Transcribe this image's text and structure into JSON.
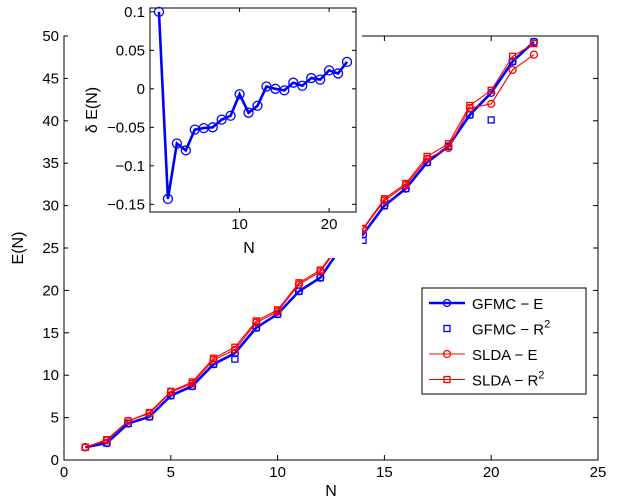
{
  "chart_data": [
    {
      "type": "line",
      "xlabel": "N",
      "ylabel": "E(N)",
      "xlim": [
        0,
        25
      ],
      "ylim": [
        0,
        50
      ],
      "xticks": [
        0,
        5,
        10,
        15,
        20,
        25
      ],
      "yticks": [
        0,
        5,
        10,
        15,
        20,
        25,
        30,
        35,
        40,
        45,
        50
      ],
      "grid": false,
      "legend_position": "bottom-right",
      "legend": [
        {
          "label": "GFMC − E",
          "sup": ""
        },
        {
          "label": "GFMC − R",
          "sup": "2"
        },
        {
          "label": "SLDA − E",
          "sup": ""
        },
        {
          "label": "SLDA − R",
          "sup": "2"
        }
      ],
      "series": [
        {
          "name": "GFMC − E",
          "color": "#0000ff",
          "marker": "circle",
          "line": true,
          "x": [
            1,
            2,
            3,
            4,
            5,
            6,
            7,
            8,
            9,
            10,
            11,
            12,
            13,
            14,
            15,
            16,
            17,
            18,
            19,
            20,
            21,
            22
          ],
          "y": [
            1.5,
            2.0,
            4.3,
            5.1,
            7.6,
            8.7,
            11.3,
            12.6,
            15.6,
            17.2,
            19.9,
            21.5,
            25.2,
            26.6,
            30.0,
            32.0,
            35.1,
            37.0,
            40.7,
            43.3,
            47.0,
            49.3
          ]
        },
        {
          "name": "GFMC − R",
          "name_sup": "2",
          "color": "#0000ff",
          "marker": "square",
          "line": false,
          "x": [
            1,
            2,
            3,
            4,
            5,
            6,
            7,
            8,
            9,
            10,
            11,
            12,
            13,
            14,
            15,
            16,
            17,
            18,
            19,
            20,
            21,
            22
          ],
          "y": [
            1.5,
            2.0,
            4.3,
            5.1,
            7.6,
            8.7,
            11.3,
            11.9,
            15.6,
            17.2,
            19.9,
            21.5,
            25.2,
            25.9,
            30.0,
            32.0,
            35.1,
            37.0,
            40.7,
            40.1,
            47.0,
            49.3
          ]
        },
        {
          "name": "SLDA − E",
          "color": "#ff0000",
          "marker": "circle",
          "line": true,
          "x": [
            1,
            2,
            3,
            4,
            5,
            6,
            7,
            8,
            9,
            10,
            11,
            12,
            13,
            14,
            15,
            16,
            17,
            18,
            19,
            20,
            21,
            22
          ],
          "y": [
            1.5,
            2.3,
            4.6,
            5.5,
            8.0,
            9.0,
            11.8,
            13.0,
            16.2,
            17.5,
            20.7,
            22.2,
            25.7,
            27.2,
            30.6,
            32.4,
            35.5,
            36.8,
            41.5,
            42.0,
            46.0,
            47.8
          ]
        },
        {
          "name": "SLDA − R",
          "name_sup": "2",
          "color": "#ff0000",
          "marker": "square",
          "line": true,
          "x": [
            1,
            2,
            3,
            4,
            5,
            6,
            7,
            8,
            9,
            10,
            11,
            12,
            13,
            14,
            15,
            16,
            17,
            18,
            19,
            20,
            21,
            22
          ],
          "y": [
            1.5,
            2.4,
            4.6,
            5.6,
            8.1,
            9.2,
            12.0,
            13.3,
            16.4,
            17.7,
            20.9,
            22.4,
            25.8,
            27.3,
            30.8,
            32.6,
            35.8,
            37.3,
            41.8,
            43.6,
            47.6,
            49.1
          ]
        }
      ]
    },
    {
      "type": "line",
      "inset": true,
      "xlabel": "N",
      "ylabel": "δ E(N)",
      "xlim": [
        0,
        23
      ],
      "ylim": [
        -0.16,
        0.105
      ],
      "xticks": [
        10,
        20
      ],
      "yticks": [
        -0.15,
        -0.1,
        -0.05,
        0,
        0.05,
        0.1
      ],
      "ytick_labels": [
        "−0.15",
        "−0.1",
        "−0.05",
        "0",
        "0.05",
        "0.1"
      ],
      "grid": false,
      "series": [
        {
          "color": "#0000ff",
          "marker": "circle",
          "line": true,
          "x": [
            1,
            2,
            3,
            4,
            5,
            6,
            7,
            8,
            9,
            10,
            11,
            12,
            13,
            14,
            15,
            16,
            17,
            18,
            19,
            20,
            21,
            22
          ],
          "y": [
            0.1,
            -0.143,
            -0.071,
            -0.08,
            -0.053,
            -0.051,
            -0.05,
            -0.04,
            -0.035,
            -0.007,
            -0.031,
            -0.022,
            0.003,
            0.0,
            -0.002,
            0.008,
            0.004,
            0.014,
            0.012,
            0.024,
            0.02,
            0.035
          ]
        }
      ]
    }
  ]
}
